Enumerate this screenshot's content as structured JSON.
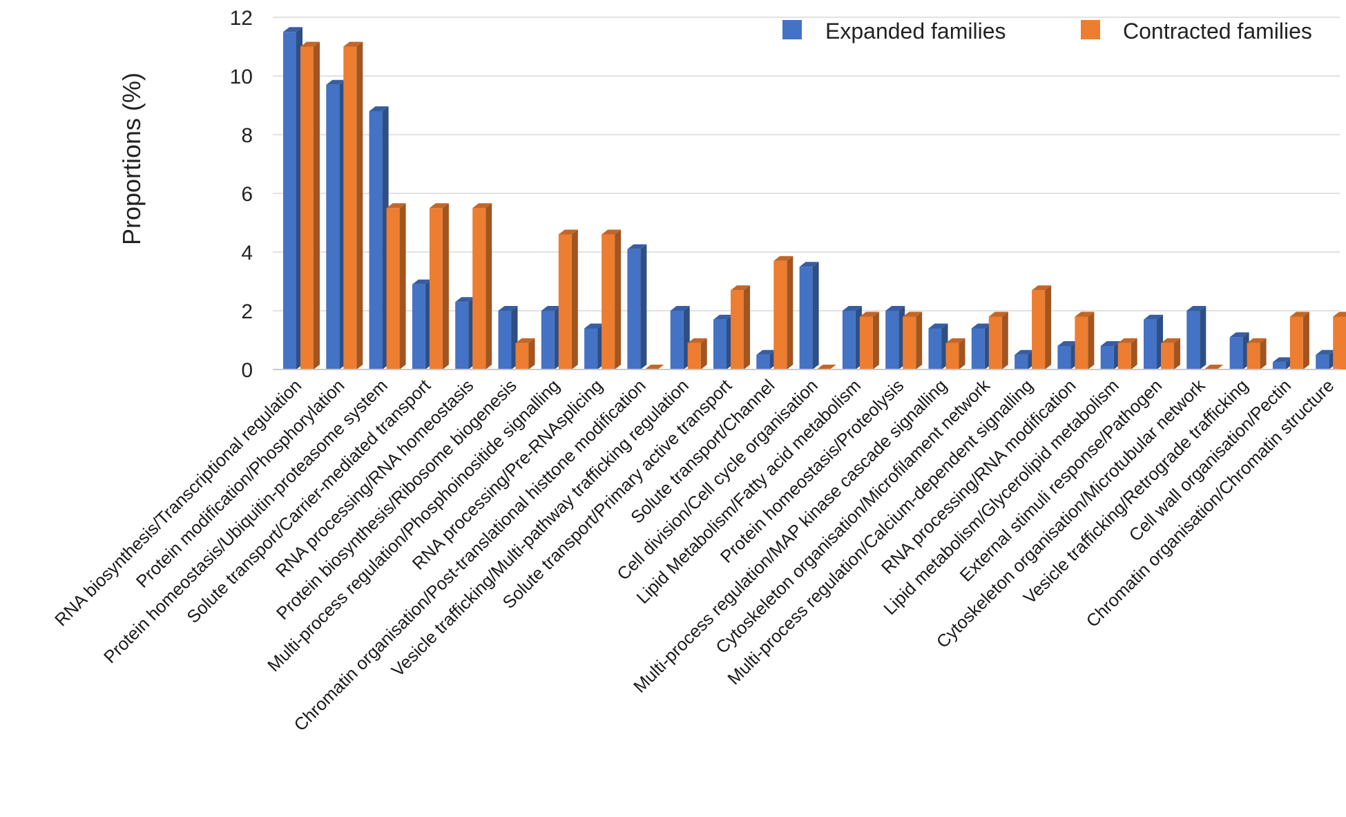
{
  "chart_data": {
    "type": "bar",
    "title": "",
    "xlabel": "",
    "ylabel": "Proportions (%)",
    "ylim": [
      0,
      12
    ],
    "yticks": [
      0,
      2,
      4,
      6,
      8,
      10,
      12
    ],
    "grid": true,
    "legend_position": "top-right",
    "categories": [
      "RNA biosynthesis/Transcriptional regulation",
      "Protein modification/Phosphorylation",
      "Protein homeostasis/Ubiquitin-proteasome system",
      "Solute transport/Carrier-mediated transport",
      "RNA processing/RNA homeostasis",
      "Protein biosynthesis/Ribosome biogenesis",
      "Multi-process regulation/Phosphoinositide signalling",
      "RNA processing/Pre-RNAsplicing",
      "Chromatin organisation/Post-translational histtone modification",
      "Vesicle trafficking/Multi-pathway trafficking regulation",
      "Solute transport/Primary active transport",
      "Solute transport/Channel",
      "Cell division/Cell cycle organisation",
      "Lipid Metabolism/Fatty acid metabolism",
      "Protein homeostasis/Proteolysis",
      "Multi-process regulation/MAP kinase cascade signalling",
      "Cytoskeleton organisation/Microfilament network",
      "Multi-process regulation/Calcium-dependent signalling",
      "RNA processing/RNA modification",
      "Lipid metabolism/Glycerolipid metabolism",
      "External stimuli response/Pathogen",
      "Cytoskeleton organisation/Microtubular network",
      "Vesicle trafficking/Retrograde trafficking",
      "Cell wall organisation/Pectin",
      "Chromatin organisation/Chromatin structure"
    ],
    "series": [
      {
        "name": "Expanded families",
        "color": "#4472C4",
        "values": [
          11.5,
          9.7,
          8.8,
          2.9,
          2.3,
          2.0,
          2.0,
          1.4,
          4.1,
          2.0,
          1.7,
          0.5,
          3.5,
          2.0,
          2.0,
          1.4,
          1.4,
          0.5,
          0.8,
          0.8,
          1.7,
          2.0,
          1.1,
          0.25,
          0.5
        ]
      },
      {
        "name": "Contracted families",
        "color": "#ED7D31",
        "values": [
          11.0,
          11.0,
          5.5,
          5.5,
          5.5,
          0.9,
          4.6,
          4.6,
          0.0,
          0.9,
          2.7,
          3.7,
          0.0,
          1.8,
          1.8,
          0.9,
          1.8,
          2.7,
          1.8,
          0.9,
          0.9,
          0.0,
          0.9,
          1.8,
          1.8
        ]
      }
    ]
  }
}
